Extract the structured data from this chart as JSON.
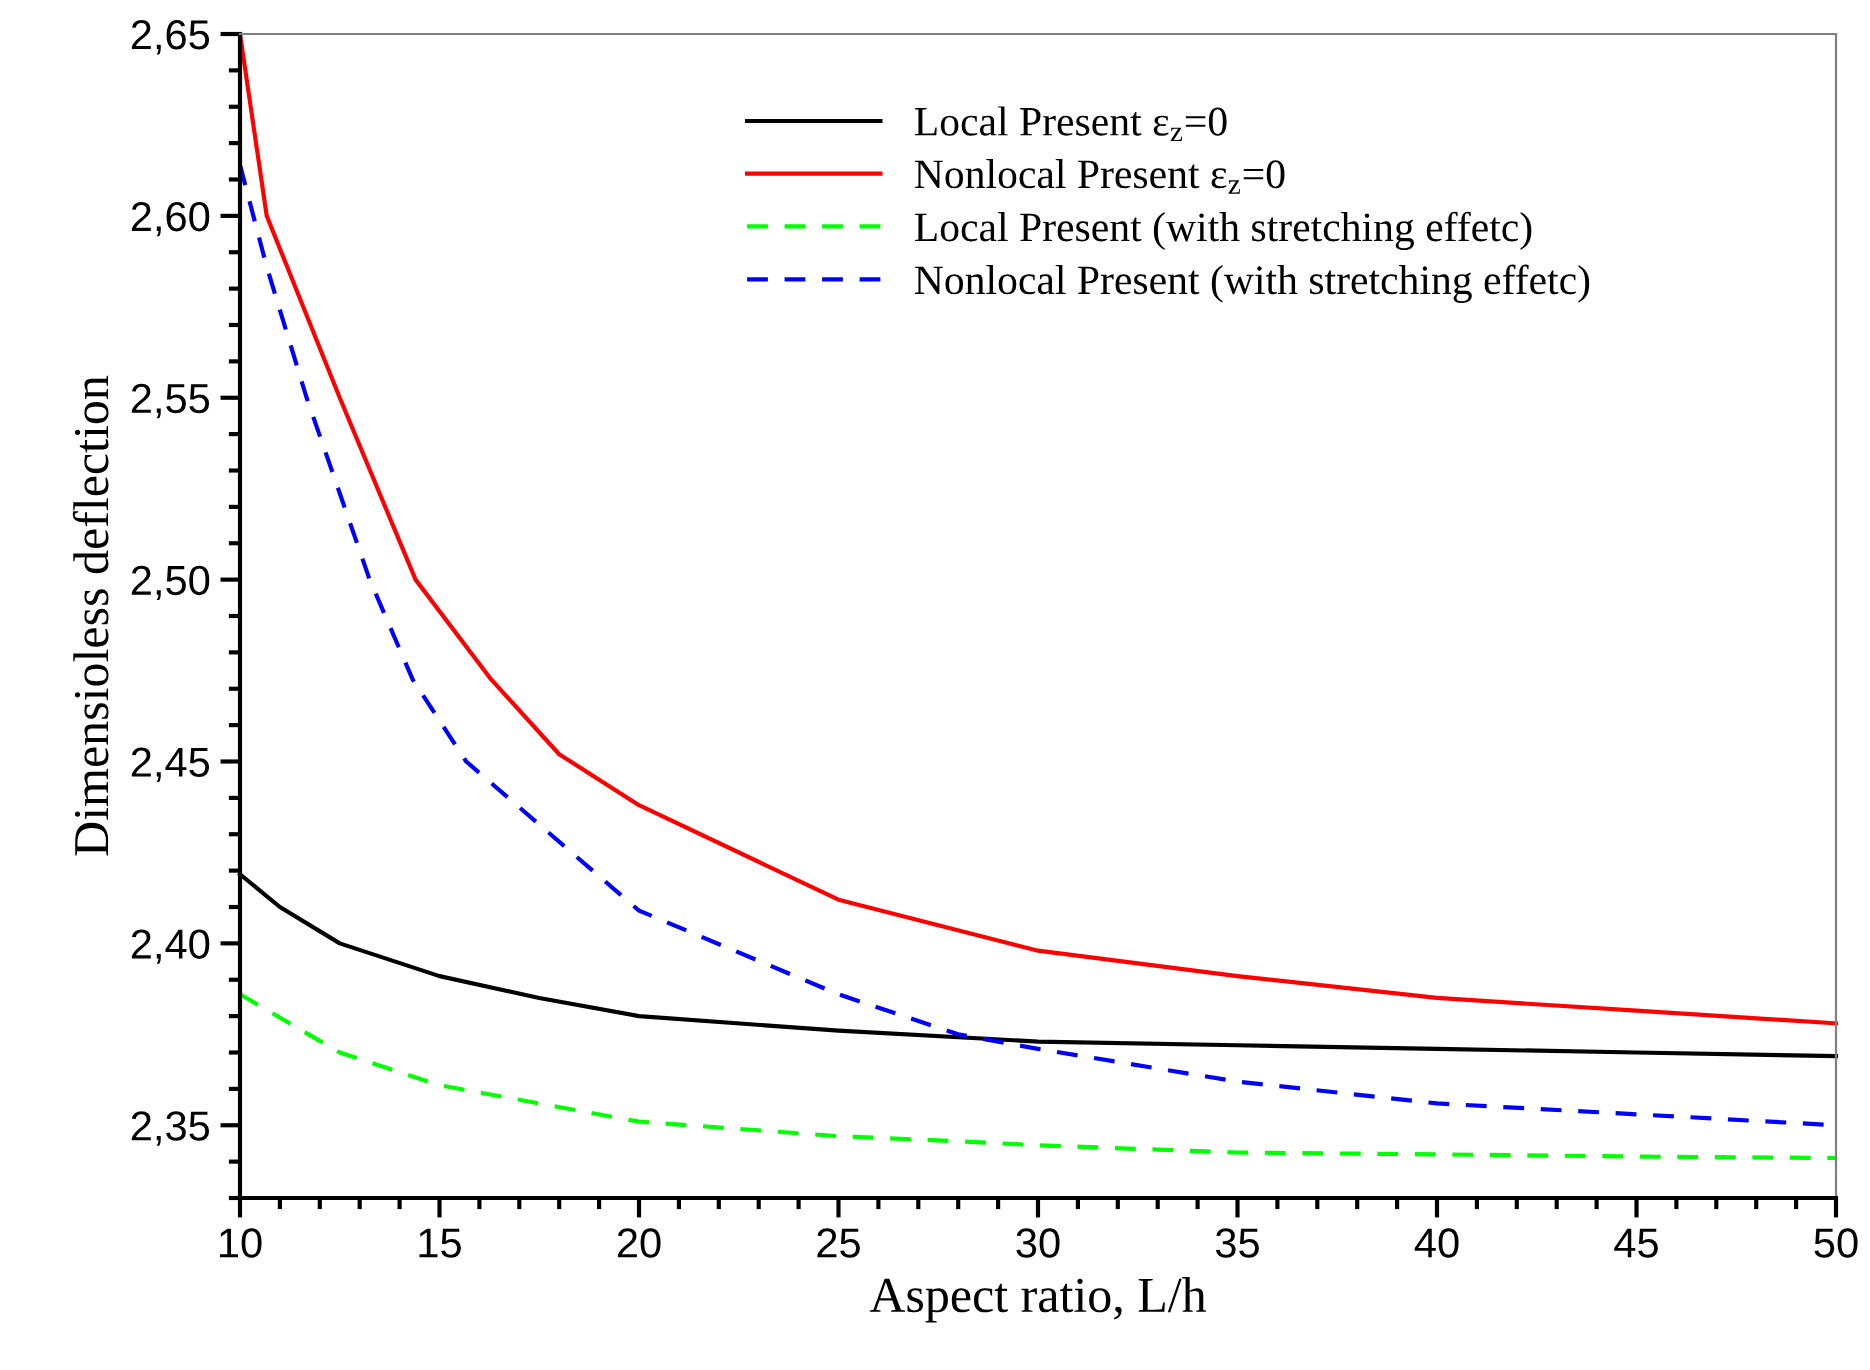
{
  "chart_data": {
    "type": "line",
    "xlabel": "Aspect ratio, L/h",
    "ylabel": "Dimensioless deflection",
    "xlim": [
      10,
      50
    ],
    "xticks": [
      10,
      15,
      20,
      25,
      30,
      35,
      40,
      45,
      50
    ],
    "ylim": [
      2.33,
      2.65
    ],
    "yticks": [
      {
        "value": 2.35,
        "label": "2,35"
      },
      {
        "value": 2.4,
        "label": "2,40"
      },
      {
        "value": 2.45,
        "label": "2,45"
      },
      {
        "value": 2.5,
        "label": "2,50"
      },
      {
        "value": 2.55,
        "label": "2,55"
      },
      {
        "value": 2.6,
        "label": "2,60"
      },
      {
        "value": 2.65,
        "label": "2,65"
      }
    ],
    "grid": false,
    "legend": "top right",
    "marker": "none",
    "series": [
      {
        "name": "Local Present ε$_{z}$=0",
        "color": "#000000",
        "line_style": "solid",
        "x": [
          10,
          11,
          12.5,
          15,
          17.5,
          20,
          25,
          30,
          35,
          40,
          45,
          50
        ],
        "values": [
          2.419,
          2.41,
          2.4,
          2.391,
          2.385,
          2.38,
          2.376,
          2.373,
          2.372,
          2.371,
          2.37,
          2.369
        ]
      },
      {
        "name": "Nonlocal Present ε$_{z}$=0",
        "color": "#ff0000",
        "line_style": "solid",
        "x": [
          10,
          10.67,
          12.5,
          14.4,
          16.3,
          18,
          20,
          25,
          30,
          35,
          40,
          45,
          50
        ],
        "values": [
          2.65,
          2.6,
          2.55,
          2.5,
          2.4725,
          2.452,
          2.438,
          2.412,
          2.398,
          2.391,
          2.385,
          2.3815,
          2.378
        ]
      },
      {
        "name": "Local Present (with stretching effetc)",
        "color": "#00ff00",
        "line_style": "dashed",
        "x": [
          10,
          12.5,
          15,
          20,
          25,
          28,
          30,
          35,
          40,
          45,
          50
        ],
        "values": [
          2.386,
          2.37,
          2.361,
          2.351,
          2.347,
          2.3456,
          2.3445,
          2.3425,
          2.342,
          2.3414,
          2.341
        ]
      },
      {
        "name": "Nonlocal Present (with stretching effetc)",
        "color": "#0000ff",
        "line_style": "dashed",
        "x": [
          10,
          10.67,
          11.67,
          13.25,
          14.33,
          15.67,
          20,
          25,
          28,
          30,
          35,
          40,
          45,
          50
        ],
        "values": [
          2.614,
          2.586,
          2.55,
          2.5,
          2.4725,
          2.45,
          2.409,
          2.386,
          2.375,
          2.371,
          2.362,
          2.356,
          2.353,
          2.35
        ]
      }
    ]
  }
}
